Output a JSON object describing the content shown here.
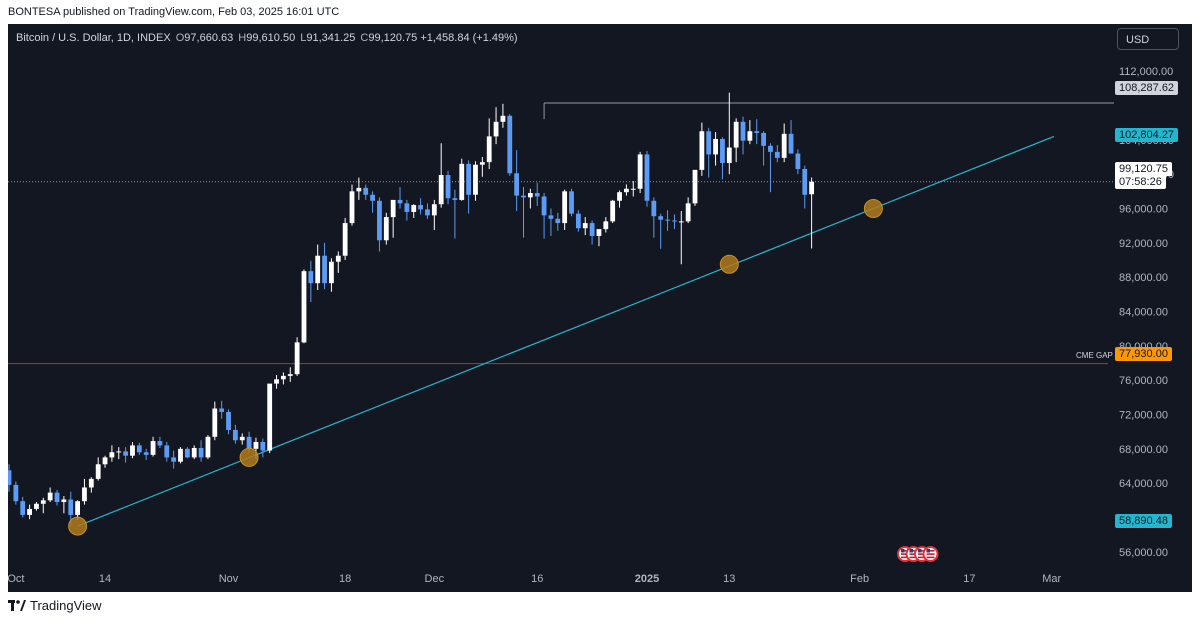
{
  "header": {
    "publisher_line": "BONTESA published on TradingView.com, Feb 03, 2025 16:01 UTC"
  },
  "legend": {
    "symbol": "Bitcoin / U.S. Dollar, 1D, INDEX",
    "open_label": "O",
    "open": "97,660.63",
    "high_label": "H",
    "high": "99,610.50",
    "low_label": "L",
    "low": "91,341.25",
    "close_label": "C",
    "close": "99,120.75",
    "change": "+1,458.84 (+1.49%)"
  },
  "currency_button": "USD",
  "footer": {
    "brand": "TradingView",
    "logo_icon": "tradingview-logo-icon"
  },
  "colors": {
    "background": "#131722",
    "up_candle": "#ffffff",
    "down_candle": "#5b9cf6",
    "trendline": "#22b6cf",
    "touch_marker": "#b07a1c",
    "cme_gap_line": "#8a4a2a",
    "cme_gap_tag": "#ff9800",
    "last_price_tag": "#ffffff",
    "trendline_tag": "#22b6cf",
    "high_tag": "#d1d4dc"
  },
  "price_tags": {
    "high_level": "108,287.62",
    "trendline_upper": "102,804.27",
    "last_price": "99,120.75",
    "countdown": "07:58:26",
    "cme_gap_label": "CME GAP",
    "cme_gap": "77,930.00",
    "trendline_lower": "58,890.48"
  },
  "y_axis": {
    "ticks": [
      "112,000.00",
      "104,000.00",
      "100,000.00",
      "96,000.00",
      "92,000.00",
      "88,000.00",
      "84,000.00",
      "80,000.00",
      "76,000.00",
      "72,000.00",
      "68,000.00",
      "64,000.00",
      "60,000.00",
      "56,000.00"
    ]
  },
  "x_axis": {
    "ticks": [
      "Oct",
      "14",
      "Nov",
      "18",
      "Dec",
      "16",
      "2025",
      "13",
      "Feb",
      "17",
      "Mar"
    ]
  },
  "event_icons": [
    "us-flag-icon",
    "us-flag-icon",
    "us-flag-icon",
    "us-flag-icon"
  ],
  "chart_data": {
    "type": "candlestick",
    "symbol": "Bitcoin / U.S. Dollar",
    "interval": "1D",
    "ylim": [
      54000,
      114000
    ],
    "trendline": {
      "from": {
        "date": "2024-10-10",
        "price": 59000
      },
      "to": {
        "date": "2025-02-03",
        "price": 96000
      }
    },
    "horizontal_levels": [
      {
        "label": "CME GAP",
        "price": 77930.0
      },
      {
        "label": "high",
        "price": 108287.62
      }
    ],
    "touch_points": [
      {
        "date": "2024-10-10",
        "price": 59000
      },
      {
        "date": "2024-11-04",
        "price": 67000
      },
      {
        "date": "2025-01-13",
        "price": 89500
      },
      {
        "date": "2025-02-03",
        "price": 96000
      }
    ],
    "candles": [
      [
        65500,
        66200,
        63000,
        63800
      ],
      [
        63800,
        64200,
        61500,
        61900
      ],
      [
        61900,
        62400,
        60000,
        60300
      ],
      [
        60300,
        61500,
        59800,
        61000
      ],
      [
        61000,
        61800,
        60800,
        61600
      ],
      [
        61600,
        62300,
        60500,
        62000
      ],
      [
        62000,
        63500,
        61800,
        62900
      ],
      [
        62900,
        63200,
        61400,
        61800
      ],
      [
        61800,
        62500,
        60500,
        62100
      ],
      [
        62100,
        63000,
        59000,
        60300
      ],
      [
        60300,
        62000,
        59700,
        61900
      ],
      [
        61900,
        64500,
        61500,
        63500
      ],
      [
        63500,
        64700,
        62900,
        64500
      ],
      [
        64500,
        67000,
        64300,
        66200
      ],
      [
        66200,
        67200,
        65800,
        67000
      ],
      [
        67000,
        68400,
        66500,
        67600
      ],
      [
        67600,
        68200,
        66800,
        67700
      ],
      [
        67700,
        68200,
        66400,
        67200
      ],
      [
        67200,
        68800,
        66900,
        68400
      ],
      [
        68400,
        68700,
        67300,
        67600
      ],
      [
        67600,
        68000,
        66700,
        67300
      ],
      [
        67300,
        69400,
        67100,
        68900
      ],
      [
        68900,
        69400,
        68100,
        68400
      ],
      [
        68400,
        68800,
        66500,
        67000
      ],
      [
        67000,
        67800,
        65700,
        66500
      ],
      [
        66500,
        68200,
        66300,
        68000
      ],
      [
        68000,
        68200,
        66900,
        67000
      ],
      [
        67000,
        68400,
        66800,
        68100
      ],
      [
        68100,
        69000,
        66500,
        67000
      ],
      [
        67000,
        69600,
        66800,
        69400
      ],
      [
        69400,
        73500,
        69000,
        72700
      ],
      [
        72700,
        73600,
        71500,
        72300
      ],
      [
        72300,
        72600,
        69700,
        70200
      ],
      [
        70200,
        70800,
        68600,
        69000
      ],
      [
        69000,
        69800,
        68500,
        69400
      ],
      [
        69400,
        70000,
        67600,
        68000
      ],
      [
        68000,
        69300,
        66800,
        68800
      ],
      [
        68800,
        69200,
        67000,
        67800
      ],
      [
        67800,
        75500,
        67500,
        75600
      ],
      [
        75600,
        76600,
        75000,
        76100
      ],
      [
        76100,
        76900,
        75500,
        76500
      ],
      [
        76500,
        77500,
        75800,
        76700
      ],
      [
        76700,
        81000,
        76500,
        80400
      ],
      [
        80400,
        88900,
        80300,
        88700
      ],
      [
        88700,
        89900,
        85100,
        87300
      ],
      [
        87300,
        91800,
        86500,
        90500
      ],
      [
        90500,
        92000,
        86600,
        87300
      ],
      [
        87300,
        90200,
        86300,
        89800
      ],
      [
        89800,
        91000,
        88500,
        90500
      ],
      [
        90500,
        94900,
        90000,
        94300
      ],
      [
        94300,
        98800,
        94000,
        98000
      ],
      [
        98000,
        99600,
        97000,
        98400
      ],
      [
        98400,
        98800,
        97000,
        97600
      ],
      [
        97600,
        98000,
        95500,
        96900
      ],
      [
        96900,
        97300,
        91000,
        92300
      ],
      [
        92300,
        95500,
        91800,
        95000
      ],
      [
        95000,
        97000,
        92600,
        97000
      ],
      [
        97000,
        98500,
        96000,
        96600
      ],
      [
        96600,
        97000,
        94600,
        95600
      ],
      [
        95600,
        96500,
        94900,
        96400
      ],
      [
        96400,
        97200,
        95300,
        95900
      ],
      [
        95900,
        96600,
        94800,
        95200
      ],
      [
        95200,
        97000,
        93500,
        96500
      ],
      [
        96500,
        103600,
        96100,
        99900
      ],
      [
        99900,
        100400,
        96500,
        97200
      ],
      [
        97200,
        98200,
        92500,
        97000
      ],
      [
        97000,
        101800,
        96900,
        101200
      ],
      [
        101200,
        101600,
        95400,
        97600
      ],
      [
        97600,
        101500,
        96900,
        101100
      ],
      [
        101100,
        102000,
        99700,
        101400
      ],
      [
        101400,
        106500,
        100600,
        104400
      ],
      [
        104400,
        107800,
        103500,
        106100
      ],
      [
        106100,
        108200,
        105400,
        106800
      ],
      [
        106800,
        107000,
        99800,
        100100
      ],
      [
        100100,
        102800,
        95700,
        97500
      ],
      [
        97500,
        98500,
        92600,
        97300
      ],
      [
        97300,
        98300,
        96000,
        97800
      ],
      [
        97800,
        99000,
        96300,
        97400
      ],
      [
        97400,
        97800,
        92500,
        95200
      ],
      [
        95200,
        96000,
        92800,
        94800
      ],
      [
        94800,
        95500,
        93400,
        94300
      ],
      [
        94300,
        98200,
        93500,
        98000
      ],
      [
        98000,
        98300,
        95100,
        95400
      ],
      [
        95400,
        95800,
        93300,
        93700
      ],
      [
        93700,
        95000,
        92900,
        94300
      ],
      [
        94300,
        94600,
        91800,
        92800
      ],
      [
        92800,
        93500,
        91600,
        93600
      ],
      [
        93600,
        95000,
        93200,
        94500
      ],
      [
        94500,
        97000,
        94300,
        96900
      ],
      [
        96900,
        98100,
        96100,
        97900
      ],
      [
        97900,
        98800,
        97500,
        98300
      ],
      [
        98300,
        99200,
        97400,
        98300
      ],
      [
        98300,
        102600,
        97800,
        102300
      ],
      [
        102300,
        102700,
        96200,
        96900
      ],
      [
        96900,
        97300,
        92600,
        95100
      ],
      [
        95100,
        95400,
        91300,
        94700
      ],
      [
        94700,
        95800,
        93400,
        94600
      ],
      [
        94600,
        95300,
        93600,
        94500
      ],
      [
        94500,
        95700,
        89500,
        94500
      ],
      [
        94500,
        97300,
        94300,
        96600
      ],
      [
        96600,
        100300,
        96300,
        100500
      ],
      [
        100500,
        106000,
        99800,
        105000
      ],
      [
        105000,
        105400,
        99600,
        102300
      ],
      [
        102300,
        104900,
        101000,
        104100
      ],
      [
        104100,
        104300,
        99400,
        101300
      ],
      [
        101300,
        109500,
        100000,
        103100
      ],
      [
        103100,
        106500,
        101400,
        106100
      ],
      [
        106100,
        106700,
        102300,
        103900
      ],
      [
        103900,
        106300,
        103500,
        105000
      ],
      [
        105000,
        106400,
        103500,
        104800
      ],
      [
        104800,
        105000,
        101000,
        103300
      ],
      [
        103300,
        103600,
        97900,
        102600
      ],
      [
        102600,
        103400,
        101400,
        101900
      ],
      [
        101900,
        105900,
        101400,
        104700
      ],
      [
        104700,
        106300,
        103000,
        102400
      ],
      [
        102400,
        102900,
        100000,
        100600
      ],
      [
        100600,
        101000,
        96000,
        97600
      ],
      [
        97660,
        99610,
        91341,
        99120
      ]
    ]
  }
}
